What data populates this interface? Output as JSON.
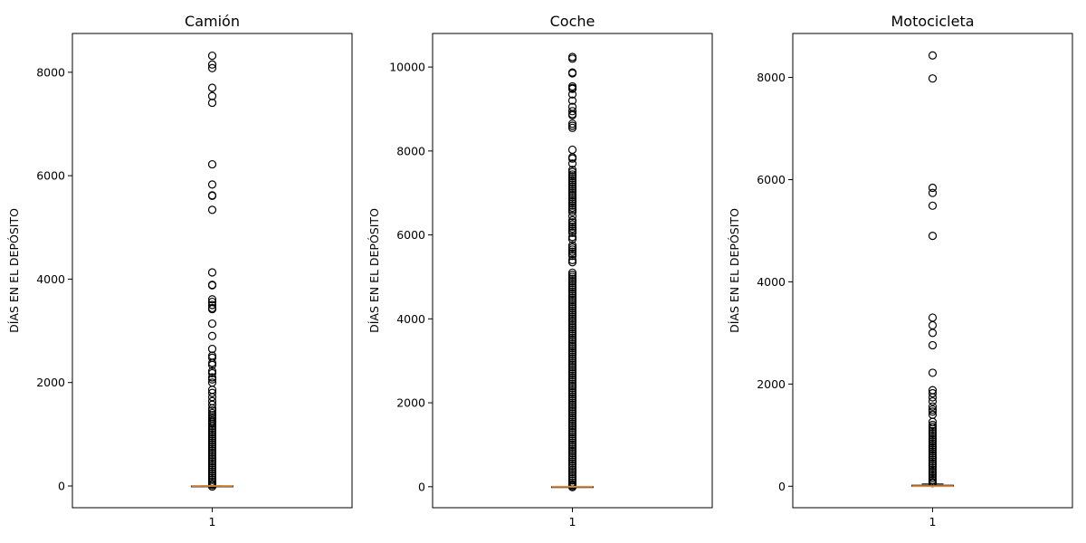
{
  "chart_data": [
    {
      "type": "boxplot",
      "title": "Camión",
      "ylabel": "DÍAS EN EL DEPÓSITO",
      "x_ticks": [
        "1"
      ],
      "ylim": [
        -420,
        8750
      ],
      "yticks": [
        0,
        2000,
        4000,
        6000,
        8000
      ],
      "box": {
        "q1": 0,
        "median": 0,
        "q3": 2,
        "whisker_low": 0,
        "whisker_high": 5
      },
      "outliers": [
        8320,
        8150,
        8080,
        7700,
        7540,
        7410,
        6220,
        5830,
        5620,
        5610,
        5340,
        4130,
        3890,
        3880,
        3610,
        3560,
        3500,
        3440,
        3420,
        3140,
        2900,
        2650,
        2520,
        2480,
        2380,
        2340,
        2220,
        2180,
        2100,
        2060,
        2000,
        1860,
        1800,
        1720,
        1640,
        1570,
        1500,
        1460,
        1410,
        1370,
        1330,
        1300,
        1260,
        1230,
        1200,
        1160,
        1120,
        1080,
        1040,
        1000,
        960,
        920,
        880,
        840,
        800,
        760,
        720,
        680,
        640,
        600,
        560,
        520,
        480,
        440,
        400,
        360,
        320,
        280,
        240,
        200,
        160,
        120,
        80,
        40,
        20,
        -10
      ],
      "grid": false
    },
    {
      "type": "boxplot",
      "title": "Coche",
      "ylabel": "DÍAS EN EL DEPÓSITO",
      "x_ticks": [
        "1"
      ],
      "ylim": [
        -500,
        10800
      ],
      "yticks": [
        0,
        2000,
        4000,
        6000,
        8000,
        10000
      ],
      "box": {
        "q1": 0,
        "median": 0,
        "q3": 2,
        "whisker_low": 0,
        "whisker_high": 5
      },
      "outliers": [
        10240,
        10200,
        9870,
        9850,
        9540,
        9500,
        9480,
        9350,
        9200,
        9050,
        8950,
        8880,
        8850,
        8650,
        8600,
        8550,
        8030,
        7850,
        7820,
        7700,
        7550,
        7500,
        7440,
        7400,
        7350,
        7300,
        7250,
        7200,
        7150,
        7100,
        7050,
        7000,
        6950,
        6900,
        6850,
        6800,
        6750,
        6700,
        6650,
        6600,
        6550,
        6450,
        6350,
        6300,
        6250,
        6200,
        6150,
        6100,
        6050,
        5950,
        5900,
        5750,
        5700,
        5650,
        5600,
        5550,
        5500,
        5400,
        5350,
        5100,
        5050,
        5000,
        4950,
        4900,
        4850,
        4800,
        4750,
        4700,
        4650,
        4600,
        4550,
        4500,
        4450,
        4400,
        4350,
        4300,
        4250,
        4200,
        4150,
        4100,
        4050,
        4000,
        3950,
        3900,
        3850,
        3800,
        3750,
        3700,
        3650,
        3600,
        3550,
        3500,
        3450,
        3400,
        3350,
        3300,
        3250,
        3200,
        3150,
        3100,
        3050,
        3000,
        2950,
        2900,
        2850,
        2800,
        2750,
        2700,
        2650,
        2600,
        2550,
        2500,
        2450,
        2400,
        2350,
        2300,
        2250,
        2200,
        2150,
        2100,
        2050,
        2000,
        1950,
        1900,
        1850,
        1800,
        1750,
        1700,
        1650,
        1600,
        1550,
        1500,
        1450,
        1400,
        1350,
        1300,
        1250,
        1200,
        1150,
        1100,
        1050,
        1000,
        950,
        900,
        850,
        800,
        750,
        700,
        650,
        600,
        550,
        500,
        450,
        400,
        350,
        300,
        250,
        200,
        150,
        100,
        50,
        20,
        -10
      ],
      "grid": false
    },
    {
      "type": "boxplot",
      "title": "Motocicleta",
      "ylabel": "DÍAS EN EL DEPÓSITO",
      "x_ticks": [
        "1"
      ],
      "ylim": [
        -420,
        8860
      ],
      "yticks": [
        0,
        2000,
        4000,
        6000,
        8000
      ],
      "box": {
        "q1": 0,
        "median": 2,
        "q3": 20,
        "whisker_low": 0,
        "whisker_high": 45
      },
      "outliers": [
        8430,
        7980,
        5840,
        5740,
        5490,
        4900,
        3300,
        3150,
        3000,
        2760,
        2220,
        1880,
        1820,
        1740,
        1660,
        1560,
        1500,
        1460,
        1400,
        1260,
        1200,
        1160,
        1120,
        1080,
        1040,
        1000,
        960,
        920,
        880,
        840,
        800,
        760,
        720,
        680,
        640,
        600,
        560,
        520,
        480,
        440,
        400,
        360,
        320,
        280,
        240,
        200,
        160,
        120,
        80,
        60
      ],
      "grid": false
    }
  ],
  "colors": {
    "median": "#e08a3c",
    "box": "#000000",
    "outlier": "#000000",
    "frame": "#000000"
  }
}
